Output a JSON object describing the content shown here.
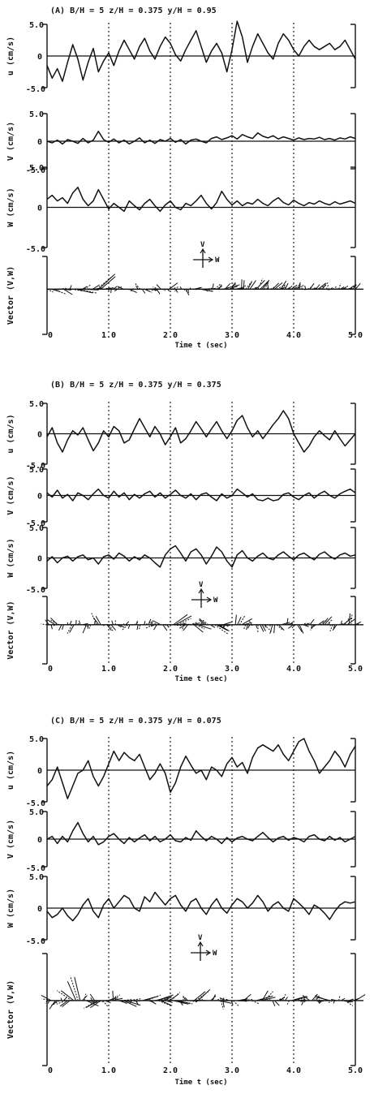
{
  "chart_data": [
    {
      "type": "line",
      "title": "(A) B/H = 5  z/H = 0.375  y/H = 0.95",
      "xlabel": "Time t (sec)",
      "x_ticks": [
        "0",
        "1.0",
        "2.0",
        "3.0",
        "4.0",
        "5.0"
      ],
      "xlim": [
        0,
        5
      ],
      "panels": [
        {
          "ylabel": "u (cm/s)",
          "y_ticks": [
            "5.0",
            "0",
            "-5.0"
          ],
          "ylim": [
            -5,
            5
          ],
          "series": [
            {
              "values": [
                -1.5,
                -3.5,
                -2.0,
                -4.0,
                -1.0,
                1.8,
                -0.5,
                -3.8,
                -1.0,
                1.2,
                -2.5,
                -0.8,
                0.5,
                -1.5,
                0.8,
                2.5,
                1.0,
                -0.5,
                1.5,
                2.8,
                0.8,
                -0.5,
                1.5,
                3.0,
                2.0,
                0.2,
                -0.8,
                1.0,
                2.5,
                4.0,
                1.5,
                -1.0,
                0.8,
                2.0,
                0.5,
                -2.5,
                1.0,
                5.5,
                3.0,
                -1.0,
                1.5,
                3.5,
                2.0,
                0.5,
                -0.5,
                2.0,
                3.5,
                2.5,
                1.0,
                0.0,
                1.5,
                2.5,
                1.5,
                1.0,
                1.5,
                2.0,
                1.0,
                1.5,
                2.5,
                1.0,
                -0.5
              ]
            }
          ]
        },
        {
          "ylabel": "V (cm/s)",
          "y_ticks": [
            "5.0",
            "0",
            "-5.0"
          ],
          "ylim": [
            -5,
            5
          ],
          "series": [
            {
              "values": [
                0.0,
                -0.3,
                0.2,
                -0.5,
                0.3,
                0.0,
                -0.4,
                0.5,
                -0.3,
                0.2,
                1.8,
                0.3,
                -0.2,
                0.4,
                -0.3,
                0.2,
                -0.5,
                0.0,
                0.6,
                -0.3,
                0.2,
                -0.4,
                0.3,
                0.0,
                0.5,
                -0.2,
                0.3,
                -0.5,
                0.2,
                0.4,
                0.0,
                -0.3,
                0.5,
                0.8,
                0.3,
                0.6,
                1.0,
                0.4,
                1.2,
                0.8,
                0.5,
                1.5,
                0.9,
                0.6,
                1.0,
                0.4,
                0.8,
                0.5,
                0.2,
                0.6,
                0.3,
                0.5,
                0.4,
                0.7,
                0.3,
                0.5,
                0.2,
                0.6,
                0.4,
                0.8,
                0.5
              ]
            }
          ]
        },
        {
          "ylabel": "W (cm/s)",
          "y_ticks": [
            "5.0",
            "0",
            "-5.0"
          ],
          "ylim": [
            -5,
            5
          ],
          "series": [
            {
              "values": [
                1.0,
                1.5,
                0.8,
                1.2,
                0.5,
                1.8,
                2.5,
                1.0,
                0.2,
                0.8,
                2.2,
                1.0,
                -0.2,
                0.5,
                0.0,
                -0.5,
                0.8,
                0.2,
                -0.3,
                0.5,
                1.0,
                0.2,
                -0.5,
                0.3,
                0.8,
                0.0,
                -0.3,
                0.5,
                0.2,
                0.8,
                1.5,
                0.5,
                -0.2,
                0.6,
                2.0,
                1.0,
                0.3,
                0.8,
                0.2,
                0.6,
                0.4,
                1.0,
                0.5,
                0.2,
                0.8,
                1.2,
                0.6,
                0.3,
                0.9,
                0.5,
                0.2,
                0.6,
                0.4,
                0.8,
                0.5,
                0.3,
                0.7,
                0.4,
                0.6,
                0.8,
                0.5
              ]
            }
          ]
        }
      ],
      "vector_panel": {
        "ylabel": "Vector (V,W)",
        "axis_labels": [
          "V",
          "W"
        ]
      }
    },
    {
      "type": "line",
      "title": "(B) B/H = 5  z/H = 0.375  y/H = 0.375",
      "xlabel": "Time t (sec)",
      "x_ticks": [
        "0",
        "1.0",
        "2.0",
        "3.0",
        "4.0",
        "5.0"
      ],
      "xlim": [
        0,
        5
      ],
      "panels": [
        {
          "ylabel": "u (cm/s)",
          "y_ticks": [
            "5.0",
            "0",
            "-5.0"
          ],
          "ylim": [
            -5,
            5
          ],
          "series": [
            {
              "values": [
                -0.5,
                1.0,
                -1.5,
                -3.0,
                -1.0,
                0.5,
                -0.2,
                1.0,
                -1.0,
                -2.8,
                -1.5,
                0.5,
                -0.5,
                1.2,
                0.5,
                -1.5,
                -1.0,
                0.8,
                2.5,
                1.0,
                -0.5,
                1.2,
                0.0,
                -1.8,
                -0.5,
                1.0,
                -1.5,
                -0.8,
                0.5,
                2.0,
                0.8,
                -0.5,
                0.8,
                2.0,
                0.5,
                -0.8,
                0.5,
                2.2,
                3.0,
                1.0,
                -0.5,
                0.5,
                -0.8,
                0.3,
                1.5,
                2.5,
                3.8,
                2.5,
                0.0,
                -1.5,
                -3.0,
                -2.0,
                -0.5,
                0.5,
                -0.3,
                -1.0,
                0.5,
                -0.8,
                -2.0,
                -1.0,
                0.0
              ]
            }
          ]
        },
        {
          "ylabel": "V (cm/s)",
          "y_ticks": [
            "5.0",
            "0",
            "-5.0"
          ],
          "ylim": [
            -5,
            5
          ],
          "series": [
            {
              "values": [
                0.5,
                -0.3,
                1.0,
                -0.5,
                0.2,
                -1.0,
                0.5,
                0.0,
                -0.8,
                0.3,
                1.2,
                0.0,
                -0.5,
                0.8,
                -0.3,
                0.5,
                -0.8,
                0.2,
                -0.5,
                0.3,
                0.8,
                -0.3,
                0.5,
                -0.5,
                0.2,
                1.0,
                0.0,
                -0.5,
                0.3,
                -0.8,
                0.2,
                0.5,
                -0.3,
                -1.0,
                0.3,
                -0.5,
                0.0,
                1.2,
                0.5,
                -0.3,
                0.3,
                -0.8,
                -1.0,
                -0.5,
                -1.0,
                -0.8,
                0.2,
                0.5,
                -0.3,
                -0.8,
                0.0,
                0.5,
                -0.5,
                0.3,
                0.8,
                0.0,
                -0.5,
                0.3,
                0.8,
                1.2,
                0.5
              ]
            }
          ]
        },
        {
          "ylabel": "W (cm/s)",
          "y_ticks": [
            "5.0",
            "0",
            "-5.0"
          ],
          "ylim": [
            -5,
            5
          ],
          "series": [
            {
              "values": [
                -0.5,
                0.2,
                -0.8,
                0.0,
                0.3,
                -0.5,
                0.2,
                0.5,
                -0.3,
                0.0,
                -1.0,
                0.2,
                0.5,
                -0.2,
                0.8,
                0.3,
                -0.5,
                0.2,
                -0.3,
                0.5,
                0.0,
                -0.8,
                -1.5,
                0.5,
                1.5,
                2.0,
                0.8,
                -0.5,
                1.0,
                1.5,
                0.5,
                -1.0,
                0.3,
                1.8,
                1.0,
                -0.5,
                -1.5,
                0.5,
                1.2,
                0.0,
                -0.5,
                0.3,
                0.8,
                0.0,
                -0.3,
                0.5,
                1.0,
                0.3,
                -0.3,
                0.5,
                0.8,
                0.2,
                -0.3,
                0.6,
                1.0,
                0.3,
                -0.2,
                0.5,
                0.8,
                0.3,
                0.5
              ]
            }
          ]
        }
      ],
      "vector_panel": {
        "ylabel": "Vector (V,W)",
        "axis_labels": [
          "V",
          "W"
        ]
      }
    },
    {
      "type": "line",
      "title": "(C) B/H = 5  z/H = 0.375  y/H = 0.075",
      "xlabel": "Time t (sec)",
      "x_ticks": [
        "0",
        "1.0",
        "2.0",
        "3.0",
        "4.0",
        "5.0"
      ],
      "xlim": [
        0,
        5
      ],
      "panels": [
        {
          "ylabel": "u (cm/s)",
          "y_ticks": [
            "5.0",
            "0",
            "-5.0"
          ],
          "ylim": [
            -5,
            5
          ],
          "series": [
            {
              "values": [
                -2.5,
                -1.5,
                0.5,
                -2.0,
                -4.5,
                -2.5,
                -0.5,
                0.0,
                1.5,
                -1.0,
                -2.5,
                -1.0,
                1.0,
                3.0,
                1.5,
                2.8,
                2.0,
                1.5,
                2.5,
                0.5,
                -1.5,
                -0.5,
                1.0,
                -0.5,
                -3.5,
                -2.0,
                0.5,
                2.2,
                0.8,
                -0.5,
                0.0,
                -1.5,
                0.5,
                0.0,
                -1.0,
                1.0,
                2.0,
                0.5,
                1.2,
                -0.5,
                2.0,
                3.5,
                4.0,
                3.5,
                3.0,
                4.0,
                2.5,
                1.5,
                3.0,
                4.5,
                5.0,
                3.0,
                1.5,
                -0.5,
                0.5,
                1.5,
                3.0,
                2.0,
                0.5,
                2.5,
                3.8
              ]
            }
          ]
        },
        {
          "ylabel": "V (cm/s)",
          "y_ticks": [
            "5.0",
            "0",
            "-5.0"
          ],
          "ylim": [
            -5,
            5
          ],
          "series": [
            {
              "values": [
                0.0,
                0.5,
                -0.8,
                0.5,
                -0.5,
                1.5,
                3.0,
                1.0,
                -0.5,
                0.5,
                -1.0,
                -0.5,
                0.5,
                1.0,
                0.0,
                -0.8,
                0.3,
                -0.5,
                0.2,
                0.8,
                -0.3,
                0.5,
                -0.5,
                0.0,
                0.8,
                -0.3,
                -0.5,
                0.3,
                -0.2,
                1.5,
                0.5,
                -0.3,
                0.5,
                0.0,
                -0.8,
                0.3,
                -0.5,
                0.2,
                0.5,
                0.0,
                -0.3,
                0.5,
                1.2,
                0.3,
                -0.5,
                0.2,
                0.5,
                -0.2,
                0.3,
                0.0,
                -0.5,
                0.5,
                0.8,
                0.0,
                -0.3,
                0.5,
                -0.2,
                0.3,
                -0.5,
                0.0,
                0.5
              ]
            }
          ]
        },
        {
          "ylabel": "W (cm/s)",
          "y_ticks": [
            "5.0",
            "0",
            "-5.0"
          ],
          "ylim": [
            -5,
            5
          ],
          "series": [
            {
              "values": [
                -0.5,
                -1.5,
                -1.0,
                0.0,
                -1.2,
                -2.0,
                -1.0,
                0.5,
                1.5,
                -0.5,
                -1.5,
                0.5,
                1.5,
                0.0,
                1.0,
                2.0,
                1.5,
                0.0,
                -0.5,
                1.8,
                1.0,
                2.5,
                1.5,
                0.5,
                1.5,
                2.0,
                0.5,
                -0.5,
                1.0,
                1.5,
                0.0,
                -1.0,
                0.5,
                1.5,
                0.0,
                -0.8,
                0.5,
                1.5,
                1.0,
                0.0,
                0.8,
                2.0,
                1.0,
                -0.5,
                0.5,
                1.0,
                0.0,
                -0.5,
                1.5,
                0.8,
                0.0,
                -1.0,
                0.5,
                0.0,
                -0.8,
                -1.8,
                -0.5,
                0.5,
                1.0,
                0.8,
                1.0
              ]
            }
          ]
        }
      ],
      "vector_panel": {
        "ylabel": "Vector (V,W)",
        "axis_labels": [
          "V",
          "W"
        ]
      }
    }
  ]
}
